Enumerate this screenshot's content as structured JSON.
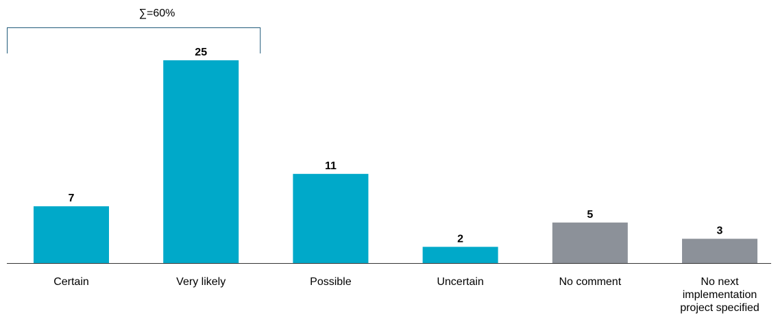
{
  "chart_data": {
    "type": "bar",
    "categories": [
      "Certain",
      "Very likely",
      "Possible",
      "Uncertain",
      "No comment",
      "No next implementation project specified"
    ],
    "values": [
      7,
      25,
      11,
      2,
      5,
      3
    ],
    "bar_colors": [
      "#00a9c9",
      "#00a9c9",
      "#00a9c9",
      "#00a9c9",
      "#8c9199",
      "#8c9199"
    ],
    "ylim": [
      0,
      25
    ],
    "grid": false,
    "annotations": [
      {
        "type": "bracket",
        "text": "∑=60%",
        "span": [
          "Certain",
          "Very likely"
        ]
      }
    ]
  }
}
